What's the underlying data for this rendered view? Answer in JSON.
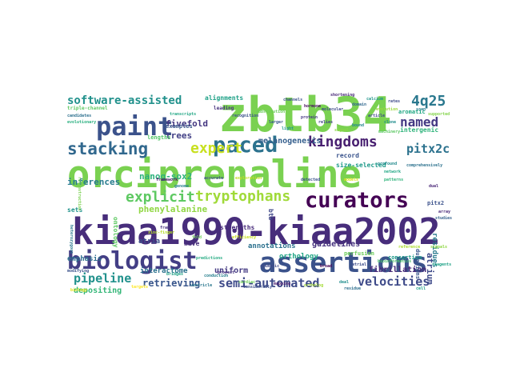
{
  "words": [
    {
      "id": "zbtb34",
      "text": "zbtb34",
      "color": "#7ad151"
    },
    {
      "id": "orciprenaline",
      "text": "orciprenaline",
      "color": "#7ad151"
    },
    {
      "id": "kiaa1990-kiaa2002",
      "text": "kiaa1990-kiaa2002",
      "color": "#472d7b"
    },
    {
      "id": "biologist",
      "text": "biologist",
      "color": "#433e85"
    },
    {
      "id": "assertions",
      "text": "assertions",
      "color": "#3b528b"
    },
    {
      "id": "paint",
      "text": "paint",
      "color": "#3b528b"
    },
    {
      "id": "paced",
      "text": "paced",
      "color": "#2c728e"
    },
    {
      "id": "curators",
      "text": "curators",
      "color": "#440154"
    },
    {
      "id": "stacking",
      "text": "stacking",
      "color": "#31688e"
    },
    {
      "id": "explicit",
      "text": "explicit",
      "color": "#5ec962"
    },
    {
      "id": "tryptophans",
      "text": "tryptophans",
      "color": "#a0da39"
    },
    {
      "id": "expert",
      "text": "expert",
      "color": "#c8e020"
    },
    {
      "id": "kingdoms",
      "text": "kingdoms",
      "color": "#481f70"
    },
    {
      "id": "software-assisted",
      "text": "software-assisted",
      "color": "#21918c"
    },
    {
      "id": "4q25",
      "text": "4q25",
      "color": "#2a788e"
    },
    {
      "id": "named",
      "text": "named",
      "color": "#443983"
    },
    {
      "id": "pitx2c",
      "text": "pitx2c",
      "color": "#2c728e"
    },
    {
      "id": "semi-automated",
      "text": "semi-automated",
      "color": "#3e4a89"
    },
    {
      "id": "velocities",
      "text": "velocities",
      "color": "#3e4a89"
    },
    {
      "id": "pipeline",
      "text": "pipeline",
      "color": "#21918c"
    },
    {
      "id": "melanogenesis",
      "text": "melanogenesis",
      "color": "#355f8d"
    },
    {
      "id": "inferences",
      "text": "inferences",
      "color": "#287c8e"
    },
    {
      "id": "nanog-sox2",
      "text": "nanog-sox2",
      "color": "#2db27d"
    },
    {
      "id": "fivefold",
      "text": "fivefold",
      "color": "#453781"
    },
    {
      "id": "trees",
      "text": "trees",
      "color": "#424086"
    },
    {
      "id": "phenylalanine",
      "text": "phenylalanine",
      "color": "#90d743"
    },
    {
      "id": "retrieving",
      "text": "retrieving",
      "color": "#39568c"
    },
    {
      "id": "depositing",
      "text": "depositing",
      "color": "#35b779"
    },
    {
      "id": "guidelines",
      "text": "guidelines",
      "color": "#46327e"
    },
    {
      "id": "atrium",
      "text": "atrium",
      "color": "#3e4a89"
    },
    {
      "id": "fibrillation",
      "text": "fibrillation",
      "color": "#472a7a"
    },
    {
      "id": "interactome",
      "text": "interactome",
      "color": "#2c728e"
    },
    {
      "id": "uniform",
      "text": "uniform",
      "color": "#443a83"
    },
    {
      "id": "emphasis",
      "text": "emphasis",
      "color": "#2e6e8e"
    },
    {
      "id": "atria",
      "text": "atria",
      "color": "#3d4e8a"
    },
    {
      "id": "wave",
      "text": "wave",
      "color": "#472d7b"
    },
    {
      "id": "strengths",
      "text": "strengths",
      "color": "#472a7a"
    },
    {
      "id": "orthology",
      "text": "orthology",
      "color": "#21a685"
    },
    {
      "id": "alignments",
      "text": "alignments",
      "color": "#1fa187"
    },
    {
      "id": "residues",
      "text": "residues",
      "color": "#297b8e"
    },
    {
      "id": "size-selected",
      "text": "size-selected",
      "color": "#1f9a8a"
    },
    {
      "id": "record",
      "text": "record",
      "color": "#3a548c"
    },
    {
      "id": "annotations",
      "text": "annotations",
      "color": "#2c718e"
    },
    {
      "id": "perfusion",
      "text": "perfusion",
      "color": "#6ccd5a"
    },
    {
      "id": "aromatic",
      "text": "aromatic",
      "color": "#22a884"
    },
    {
      "id": "intergenic",
      "text": "intergenic",
      "color": "#2fb47c"
    },
    {
      "id": "examples",
      "text": "examples",
      "color": "#39568c"
    },
    {
      "id": "lengths",
      "text": "lengths",
      "color": "#52c569"
    },
    {
      "id": "sets",
      "text": "sets",
      "color": "#20928c"
    },
    {
      "id": "ontology",
      "text": "ontology",
      "color": "#5ec962"
    },
    {
      "id": "btb",
      "text": "btb",
      "color": "#3f4788"
    },
    {
      "id": "consortium",
      "text": "consortium",
      "color": "#1e9b8a"
    },
    {
      "id": "durations",
      "text": "durations",
      "color": "#39568c"
    },
    {
      "id": "pitx2",
      "text": "pitx2",
      "color": "#3b528b"
    },
    {
      "id": "leading",
      "text": "leading",
      "color": "#46327e"
    },
    {
      "id": "triple",
      "text": "triple-channel",
      "color": "#5ec962"
    },
    {
      "id": "array",
      "text": "array",
      "color": "#482878"
    },
    {
      "id": "rates",
      "text": "rates",
      "color": "#3e4989"
    },
    {
      "id": "calcium",
      "text": "calcium",
      "color": "#1f968b"
    },
    {
      "id": "channels",
      "text": "channels",
      "color": "#3b528b"
    },
    {
      "id": "shortening",
      "text": "shortening",
      "color": "#482878"
    },
    {
      "id": "predictions",
      "text": "predictions",
      "color": "#25ab82"
    },
    {
      "id": "chimeric",
      "text": "chimeric",
      "color": "#3e4a89"
    },
    {
      "id": "project",
      "text": "project",
      "color": "#46337f"
    },
    {
      "id": "transcripts",
      "text": "transcripts",
      "color": "#22a785"
    },
    {
      "id": "recognition",
      "text": "recognition",
      "color": "#3b528b"
    },
    {
      "id": "substitution",
      "text": "substitution",
      "color": "#6ccd5a"
    },
    {
      "id": "accurate",
      "text": "accurate",
      "color": "#3d4d8a"
    },
    {
      "id": "exploration",
      "text": "exploration",
      "color": "#c2df23"
    },
    {
      "id": "genome",
      "text": "genome",
      "color": "#26828e"
    },
    {
      "id": "evolutionary",
      "text": "evolutionary",
      "color": "#29af7f"
    },
    {
      "id": "candidates",
      "text": "candidates",
      "color": "#2d708e"
    },
    {
      "id": "framework",
      "text": "framework",
      "color": "#471164"
    },
    {
      "id": "efficiency",
      "text": "efficiency",
      "color": "#c8e020"
    },
    {
      "id": "zinc-finger",
      "text": "zinc-finger",
      "color": "#b5de2b"
    },
    {
      "id": "conduction",
      "text": "conduction",
      "color": "#277f8e"
    },
    {
      "id": "heterozygous",
      "text": "heterozygous",
      "color": "#2a788e"
    },
    {
      "id": "modifying",
      "text": "modifying",
      "color": "#3b528b"
    },
    {
      "id": "reconstruction",
      "text": "reconstruction",
      "color": "#7ad151"
    },
    {
      "id": "bridges",
      "text": "bridges",
      "color": "#20a386"
    },
    {
      "id": "comprehensively",
      "text": "comprehensively",
      "color": "#2c728e"
    },
    {
      "id": "supported",
      "text": "supported",
      "color": "#84d44b"
    },
    {
      "id": "domain",
      "text": "domain",
      "color": "#31688e"
    },
    {
      "id": "reference",
      "text": "reference",
      "color": "#addc30"
    },
    {
      "id": "clone",
      "text": "clone",
      "color": "#228d8d"
    },
    {
      "id": "biology",
      "text": "biology",
      "color": "#e5e419"
    },
    {
      "id": "targets",
      "text": "targets",
      "color": "#fde725"
    },
    {
      "id": "protein",
      "text": "protein",
      "color": "#453882"
    },
    {
      "id": "molecular",
      "text": "molecular",
      "color": "#3e4a89"
    },
    {
      "id": "cardiac",
      "text": "cardiac",
      "color": "#6ece58"
    },
    {
      "id": "ventricle",
      "text": "ventricle",
      "color": "#2a778e"
    },
    {
      "id": "mapping",
      "text": "mapping",
      "color": "#481c6e"
    },
    {
      "id": "ortholog",
      "text": "ortholog",
      "color": "#a5db36"
    },
    {
      "id": "residue",
      "text": "residue",
      "color": "#2e6f8e"
    },
    {
      "id": "cell",
      "text": "cell",
      "color": "#1fa088"
    },
    {
      "id": "relies",
      "text": "relies",
      "color": "#414487"
    },
    {
      "id": "article",
      "text": "article",
      "color": "#3f4889"
    },
    {
      "id": "bound",
      "text": "bound",
      "color": "#24878e"
    },
    {
      "id": "signal",
      "text": "signal",
      "color": "#8bd646"
    },
    {
      "id": "evolution",
      "text": "evolution",
      "color": "#9bd93c"
    },
    {
      "id": "hormone",
      "text": "hormone",
      "color": "#46085c"
    },
    {
      "id": "larger",
      "text": "larger",
      "color": "#38588c"
    },
    {
      "id": "light",
      "text": "light",
      "color": "#1f988b"
    },
    {
      "id": "broad",
      "text": "broad",
      "color": "#440154"
    },
    {
      "id": "profound",
      "text": "profound",
      "color": "#238a8d"
    },
    {
      "id": "machinery",
      "text": "machinery",
      "color": "#5cc863"
    },
    {
      "id": "network",
      "text": "network",
      "color": "#22a785"
    },
    {
      "id": "detected",
      "text": "detected",
      "color": "#3a538b"
    },
    {
      "id": "patterns",
      "text": "patterns",
      "color": "#2fb47c"
    },
    {
      "id": "models",
      "text": "models",
      "color": "#d8e219"
    },
    {
      "id": "bioinf",
      "text": "bioinformatics",
      "color": "#4ac16d"
    },
    {
      "id": "dual",
      "text": "dual",
      "color": "#482576"
    },
    {
      "id": "considerably",
      "text": "considerably",
      "color": "#3c4f8a"
    },
    {
      "id": "reagents",
      "text": "reagents",
      "color": "#1fa287"
    },
    {
      "id": "signal2",
      "text": "signals",
      "color": "#8fd744"
    },
    {
      "id": "studies",
      "text": "studies",
      "color": "#35608d"
    },
    {
      "id": "frame",
      "text": "frame",
      "color": "#46307e"
    },
    {
      "id": "atrial",
      "text": "atrial",
      "color": "#3d4d8a"
    },
    {
      "id": "scan",
      "text": "scan",
      "color": "#287d8e"
    },
    {
      "id": "fold",
      "text": "fold",
      "color": "#6ece58"
    },
    {
      "id": "deal",
      "text": "deal",
      "color": "#218e8d"
    }
  ]
}
